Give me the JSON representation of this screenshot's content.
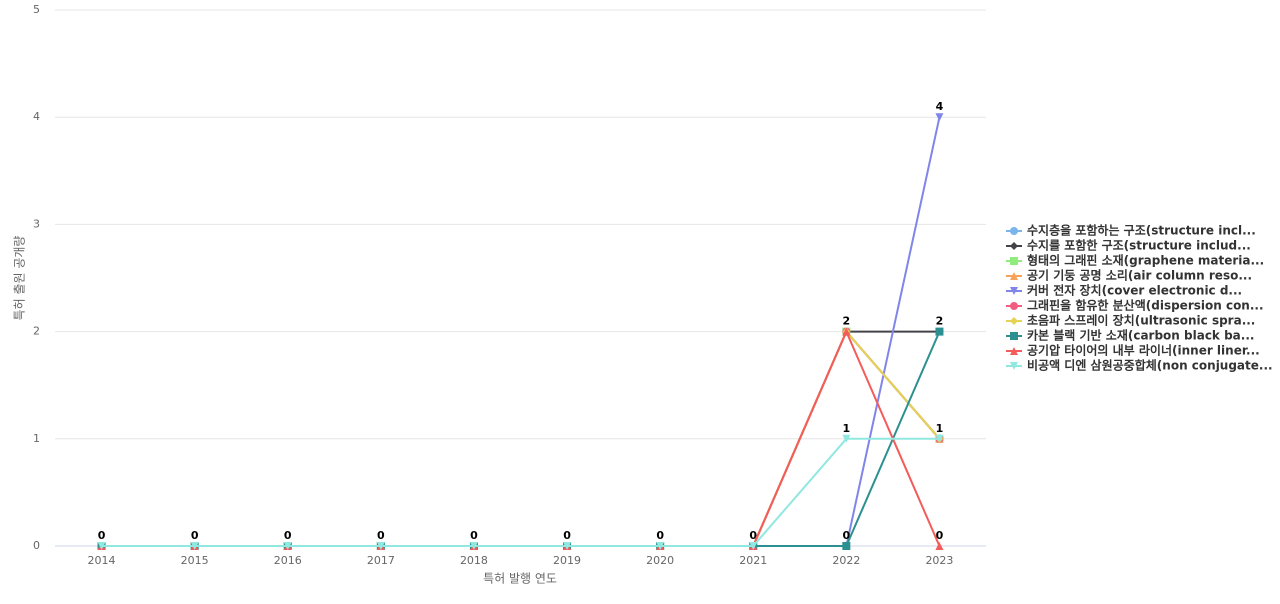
{
  "chart_data": {
    "type": "line",
    "x_label": "특허 발행 연도",
    "y_label": "특허 출원 공개량",
    "categories": [
      "2014",
      "2015",
      "2016",
      "2017",
      "2018",
      "2019",
      "2020",
      "2021",
      "2022",
      "2023"
    ],
    "ylim": [
      0,
      5
    ],
    "yticks": [
      0,
      1,
      2,
      3,
      4,
      5
    ],
    "grid": true,
    "legend": "right",
    "series": [
      {
        "name": "수지층을 포함하는 구조(structure incl...",
        "color": "#7cb5ec",
        "marker": "circle",
        "values": [
          0,
          0,
          0,
          0,
          0,
          0,
          0,
          0,
          2,
          1
        ]
      },
      {
        "name": "수지를 포함한 구조(structure includ...",
        "color": "#434348",
        "marker": "diamond",
        "values": [
          0,
          0,
          0,
          0,
          0,
          0,
          0,
          0,
          2,
          2
        ]
      },
      {
        "name": "형태의 그래핀 소재(graphene materia...",
        "color": "#90ed7d",
        "marker": "square",
        "values": [
          0,
          0,
          0,
          0,
          0,
          0,
          0,
          0,
          2,
          1
        ]
      },
      {
        "name": "공기 기둥 공명 소리(air column reso...",
        "color": "#f7a35c",
        "marker": "triangle",
        "values": [
          0,
          0,
          0,
          0,
          0,
          0,
          0,
          0,
          2,
          1
        ]
      },
      {
        "name": "커버 전자 장치(cover electronic d...",
        "color": "#8085e9",
        "marker": "triangle-down",
        "values": [
          0,
          0,
          0,
          0,
          0,
          0,
          0,
          0,
          0,
          4
        ]
      },
      {
        "name": "그래핀을 함유한 분산액(dispersion con...",
        "color": "#f15c80",
        "marker": "circle",
        "values": [
          0,
          0,
          0,
          0,
          0,
          0,
          0,
          0,
          2,
          1
        ]
      },
      {
        "name": "초음파 스프레이 장치(ultrasonic spra...",
        "color": "#e4d354",
        "marker": "diamond",
        "values": [
          0,
          0,
          0,
          0,
          0,
          0,
          0,
          0,
          2,
          1
        ]
      },
      {
        "name": "카본 블랙 기반 소재(carbon black ba...",
        "color": "#2b908f",
        "marker": "square",
        "values": [
          0,
          0,
          0,
          0,
          0,
          0,
          0,
          0,
          0,
          2
        ]
      },
      {
        "name": "공기압 타이어의 내부 라이너(inner liner...",
        "color": "#f45b5b",
        "marker": "triangle",
        "values": [
          0,
          0,
          0,
          0,
          0,
          0,
          0,
          0,
          2,
          0
        ]
      },
      {
        "name": "비공액 디엔 삼원공중합체(non conjugate...",
        "color": "#91e8e1",
        "marker": "triangle-down",
        "values": [
          0,
          0,
          0,
          0,
          0,
          0,
          0,
          0,
          1,
          1
        ]
      }
    ]
  }
}
